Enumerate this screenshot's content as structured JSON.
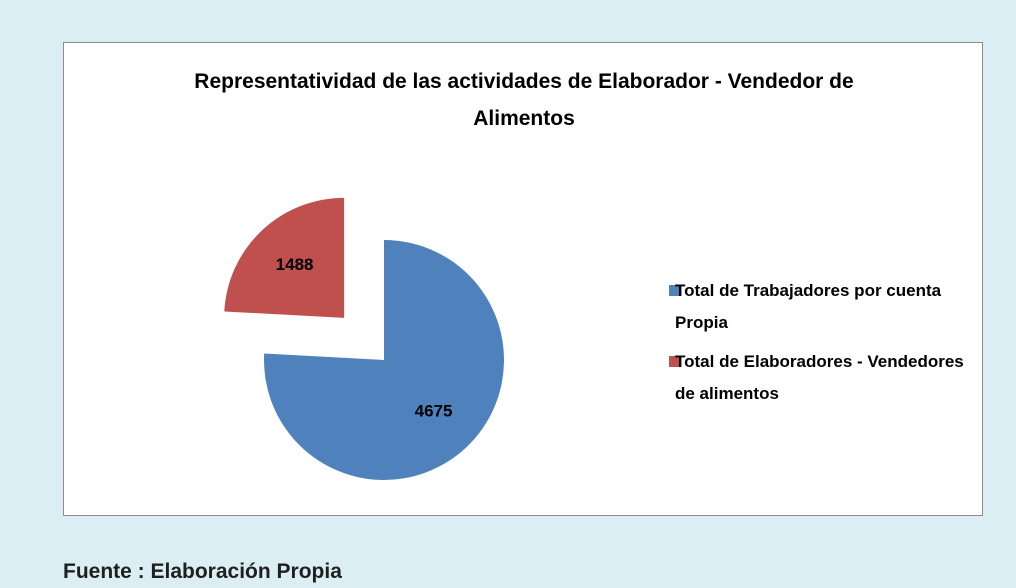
{
  "chart_data": {
    "type": "pie",
    "title": "Representatividad de las actividades de Elaborador - Vendedor de Alimentos",
    "series": [
      {
        "name": "Total de Trabajadores por cuenta Propia",
        "color": "#4f81bd",
        "values": [
          4675
        ]
      },
      {
        "name": "Total de Elaboradores - Vendedores de alimentos",
        "color": "#c0504d",
        "values": [
          1488
        ]
      }
    ],
    "legend": "right"
  },
  "source": "Fuente : Elaboración Propia"
}
